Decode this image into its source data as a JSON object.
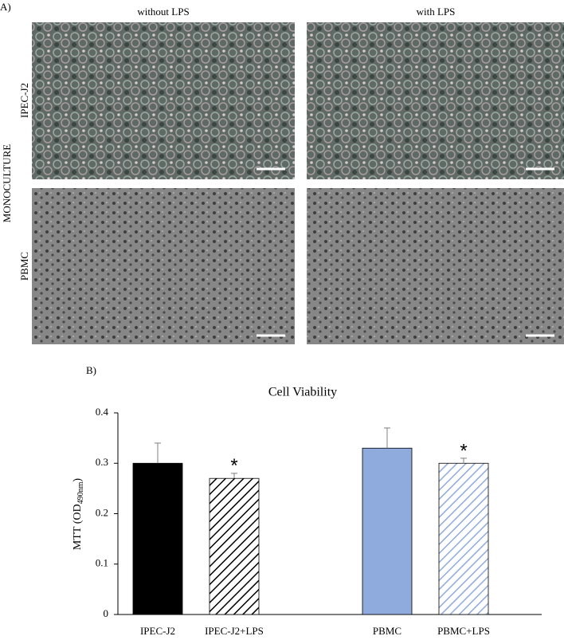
{
  "panel_a": {
    "label": "A)",
    "columns": [
      "without LPS",
      "with LPS"
    ],
    "group_label": "MONOCULTURE",
    "rows": [
      "IPEC-J2",
      "PBMC"
    ]
  },
  "chart_data": {
    "type": "bar",
    "panel_label": "B)",
    "title": "Cell Viability",
    "y_label": [
      "MTT (OD",
      "490nm",
      ")"
    ],
    "categories": [
      "IPEC-J2",
      "IPEC-J2+LPS",
      null,
      "PBMC",
      "PBMC+LPS"
    ],
    "values": [
      0.3,
      0.27,
      null,
      0.33,
      0.3
    ],
    "errors": [
      0.04,
      0.01,
      null,
      0.04,
      0.01
    ],
    "colors": [
      "#000000",
      "#000000",
      null,
      "#8faadc",
      "#8faadc"
    ],
    "hatched": [
      false,
      true,
      null,
      false,
      true
    ],
    "significance": [
      null,
      "*",
      null,
      null,
      "*"
    ],
    "ylim": [
      0,
      0.4
    ],
    "yticks": [
      0,
      0.1,
      0.2,
      0.3,
      0.4
    ],
    "grid": false
  }
}
